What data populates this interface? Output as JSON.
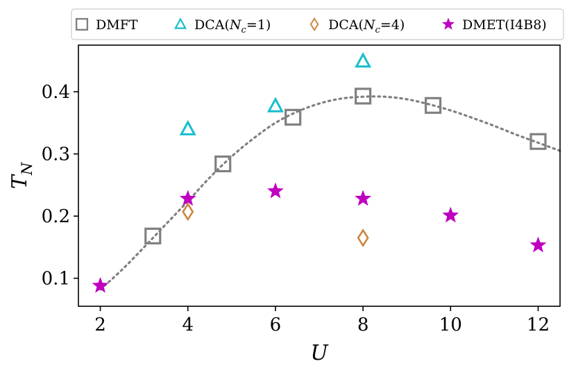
{
  "chart_data": {
    "type": "scatter",
    "title": "",
    "xlabel": "U",
    "ylabel": "T",
    "ylabel_subscript": "N",
    "xlim": [
      1.5,
      12.5
    ],
    "ylim": [
      0.055,
      0.475
    ],
    "xticks": [
      2,
      4,
      6,
      8,
      10,
      12
    ],
    "yticks": [
      0.1,
      0.2,
      0.3,
      0.4
    ],
    "xtick_labels": [
      "2",
      "4",
      "6",
      "8",
      "10",
      "12"
    ],
    "ytick_labels": [
      "0.1",
      "0.2",
      "0.3",
      "0.4"
    ],
    "legend_position": "top",
    "series": [
      {
        "name": "DMFT",
        "marker": "square",
        "color": "#808080",
        "x": [
          3.2,
          4.8,
          6.4,
          8.0,
          9.6,
          12.0
        ],
        "y": [
          0.168,
          0.284,
          0.359,
          0.393,
          0.378,
          0.32
        ]
      },
      {
        "name": "DCA(Nc=1)",
        "marker": "triangle",
        "color": "#17BECF",
        "x": [
          4,
          6,
          8
        ],
        "y": [
          0.34,
          0.377,
          0.449
        ]
      },
      {
        "name": "DCA(Nc=4)",
        "marker": "diamond",
        "color": "#CD853F",
        "x": [
          4,
          8
        ],
        "y": [
          0.207,
          0.165
        ]
      },
      {
        "name": "DMET(I4B8)",
        "marker": "star",
        "color": "#BF00BF",
        "x": [
          2,
          4,
          6,
          8,
          10,
          12
        ],
        "y": [
          0.088,
          0.228,
          0.24,
          0.228,
          0.201,
          0.153
        ]
      }
    ],
    "fit_curve": {
      "name": "DMFT fit",
      "style": "dotted",
      "color": "#808080",
      "x": [
        2.0,
        2.5,
        3.0,
        3.5,
        4.0,
        4.5,
        5.0,
        5.5,
        6.0,
        6.5,
        7.0,
        7.5,
        8.0,
        8.5,
        9.0,
        9.5,
        10.0,
        10.5,
        11.0,
        11.5,
        12.0,
        12.5
      ],
      "y": [
        0.082,
        0.114,
        0.15,
        0.187,
        0.224,
        0.262,
        0.296,
        0.325,
        0.35,
        0.368,
        0.381,
        0.389,
        0.392,
        0.392,
        0.388,
        0.38,
        0.37,
        0.358,
        0.345,
        0.331,
        0.318,
        0.305
      ]
    }
  },
  "legend": [
    {
      "label_pre": "DMFT",
      "label_var": "",
      "label_sub": "",
      "label_post": ""
    },
    {
      "label_pre": "DCA(",
      "label_var": "N",
      "label_sub": "c",
      "label_post": "=1)"
    },
    {
      "label_pre": "DCA(",
      "label_var": "N",
      "label_sub": "c",
      "label_post": "=4)"
    },
    {
      "label_pre": "DMET(I4B8)",
      "label_var": "",
      "label_sub": "",
      "label_post": ""
    }
  ]
}
